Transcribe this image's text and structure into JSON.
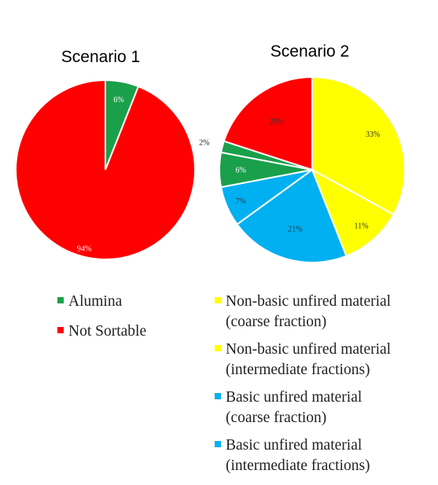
{
  "chart_data": [
    {
      "type": "pie",
      "title": "Scenario 1",
      "slices": [
        {
          "label": "Alumina",
          "value": 6,
          "data_label": "6%",
          "color": "#1aa04a"
        },
        {
          "label": "Not Sortable",
          "value": 94,
          "data_label": "94%",
          "color": "#ff0000"
        }
      ],
      "legend": {
        "placement": "bottom",
        "entries": [
          {
            "label": "Alumina",
            "color": "#1aa04a"
          },
          {
            "label": "Not Sortable",
            "color": "#ff0000"
          }
        ]
      }
    },
    {
      "type": "pie",
      "title": "Scenario 2",
      "slices": [
        {
          "label": "Non-basic unfired material (coarse fraction)",
          "value": 33,
          "data_label": "33%",
          "color": "#ffff00"
        },
        {
          "label": "Non-basic unfired material (intermediate fractions)",
          "value": 11,
          "data_label": "11%",
          "color": "#ffff00"
        },
        {
          "label": "Basic unfired material (coarse fraction)",
          "value": 21,
          "data_label": "21%",
          "color": "#00b0f0"
        },
        {
          "label": "Basic unfired material (intermediate fractions)",
          "value": 7,
          "data_label": "7%",
          "color": "#00b0f0"
        },
        {
          "label": "Alumina",
          "value": 6,
          "data_label": "6%",
          "color": "#1aa04a"
        },
        {
          "label": "Alumina",
          "value": 2,
          "data_label": "2%",
          "color": "#1aa04a"
        },
        {
          "label": "Not Sortable",
          "value": 20,
          "data_label": "20%",
          "color": "#ff0000"
        }
      ],
      "legend": {
        "placement": "bottom",
        "entries": [
          {
            "lines": [
              "Non-basic unfired material",
              "(coarse fraction)"
            ],
            "color": "#ffff00"
          },
          {
            "lines": [
              "Non-basic unfired material",
              "(intermediate fractions)"
            ],
            "color": "#ffff00"
          },
          {
            "lines": [
              "Basic unfired material",
              "(coarse fraction)"
            ],
            "color": "#00b0f0"
          },
          {
            "lines": [
              "Basic unfired material",
              "(intermediate fractions)"
            ],
            "color": "#00b0f0"
          }
        ]
      }
    }
  ]
}
